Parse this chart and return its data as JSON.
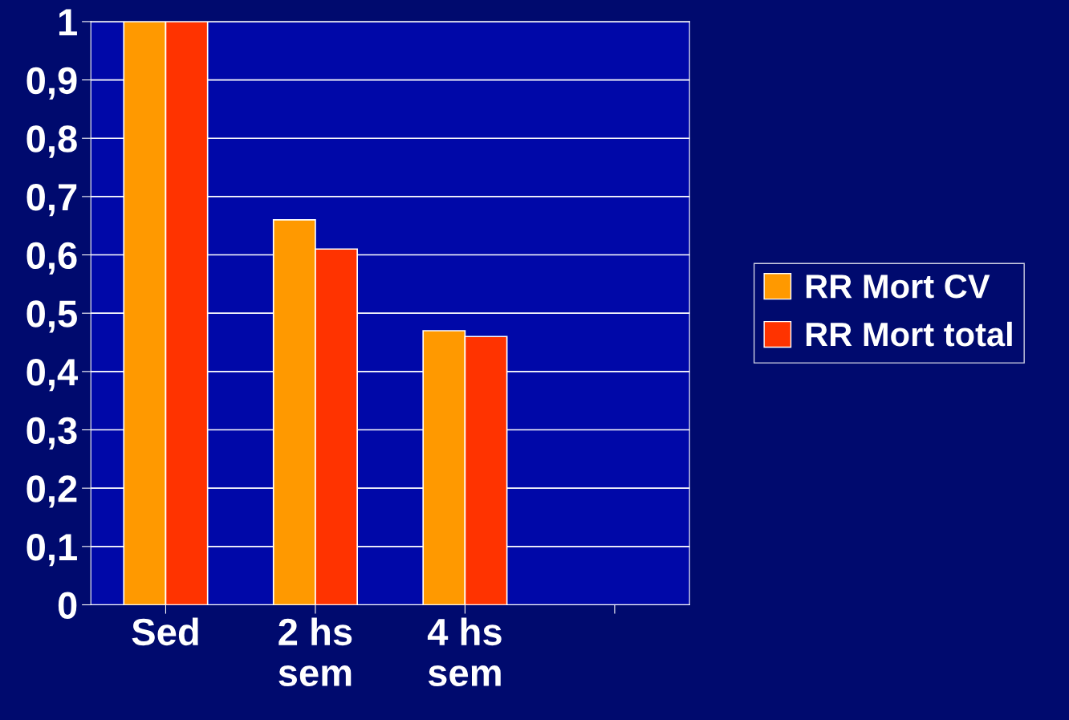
{
  "chart_data": {
    "type": "bar",
    "categories": [
      "Sed",
      "2 hs\nsem",
      "4 hs\nsem",
      null
    ],
    "series": [
      {
        "name": "RR Mort CV",
        "color": "#ff9900",
        "values": [
          1,
          0.66,
          0.47,
          null
        ]
      },
      {
        "name": "RR Mort total",
        "color": "#ff3300",
        "values": [
          1,
          0.61,
          0.46,
          null
        ]
      }
    ],
    "ylim": [
      0,
      1
    ],
    "yticks": [
      0,
      {
        "value": 0.1,
        "label": "0,1"
      },
      {
        "value": 0.2,
        "label": "0,2"
      },
      {
        "value": 0.3,
        "label": "0,3"
      },
      {
        "value": 0.4,
        "label": "0,4"
      },
      {
        "value": 0.5,
        "label": "0,5"
      },
      {
        "value": 0.6,
        "label": "0,6"
      },
      {
        "value": 0.7,
        "label": "0,7"
      },
      {
        "value": 0.8,
        "label": "0,8"
      },
      {
        "value": 0.9,
        "label": "0,9"
      },
      1
    ],
    "grid": "y",
    "legend": "right"
  }
}
